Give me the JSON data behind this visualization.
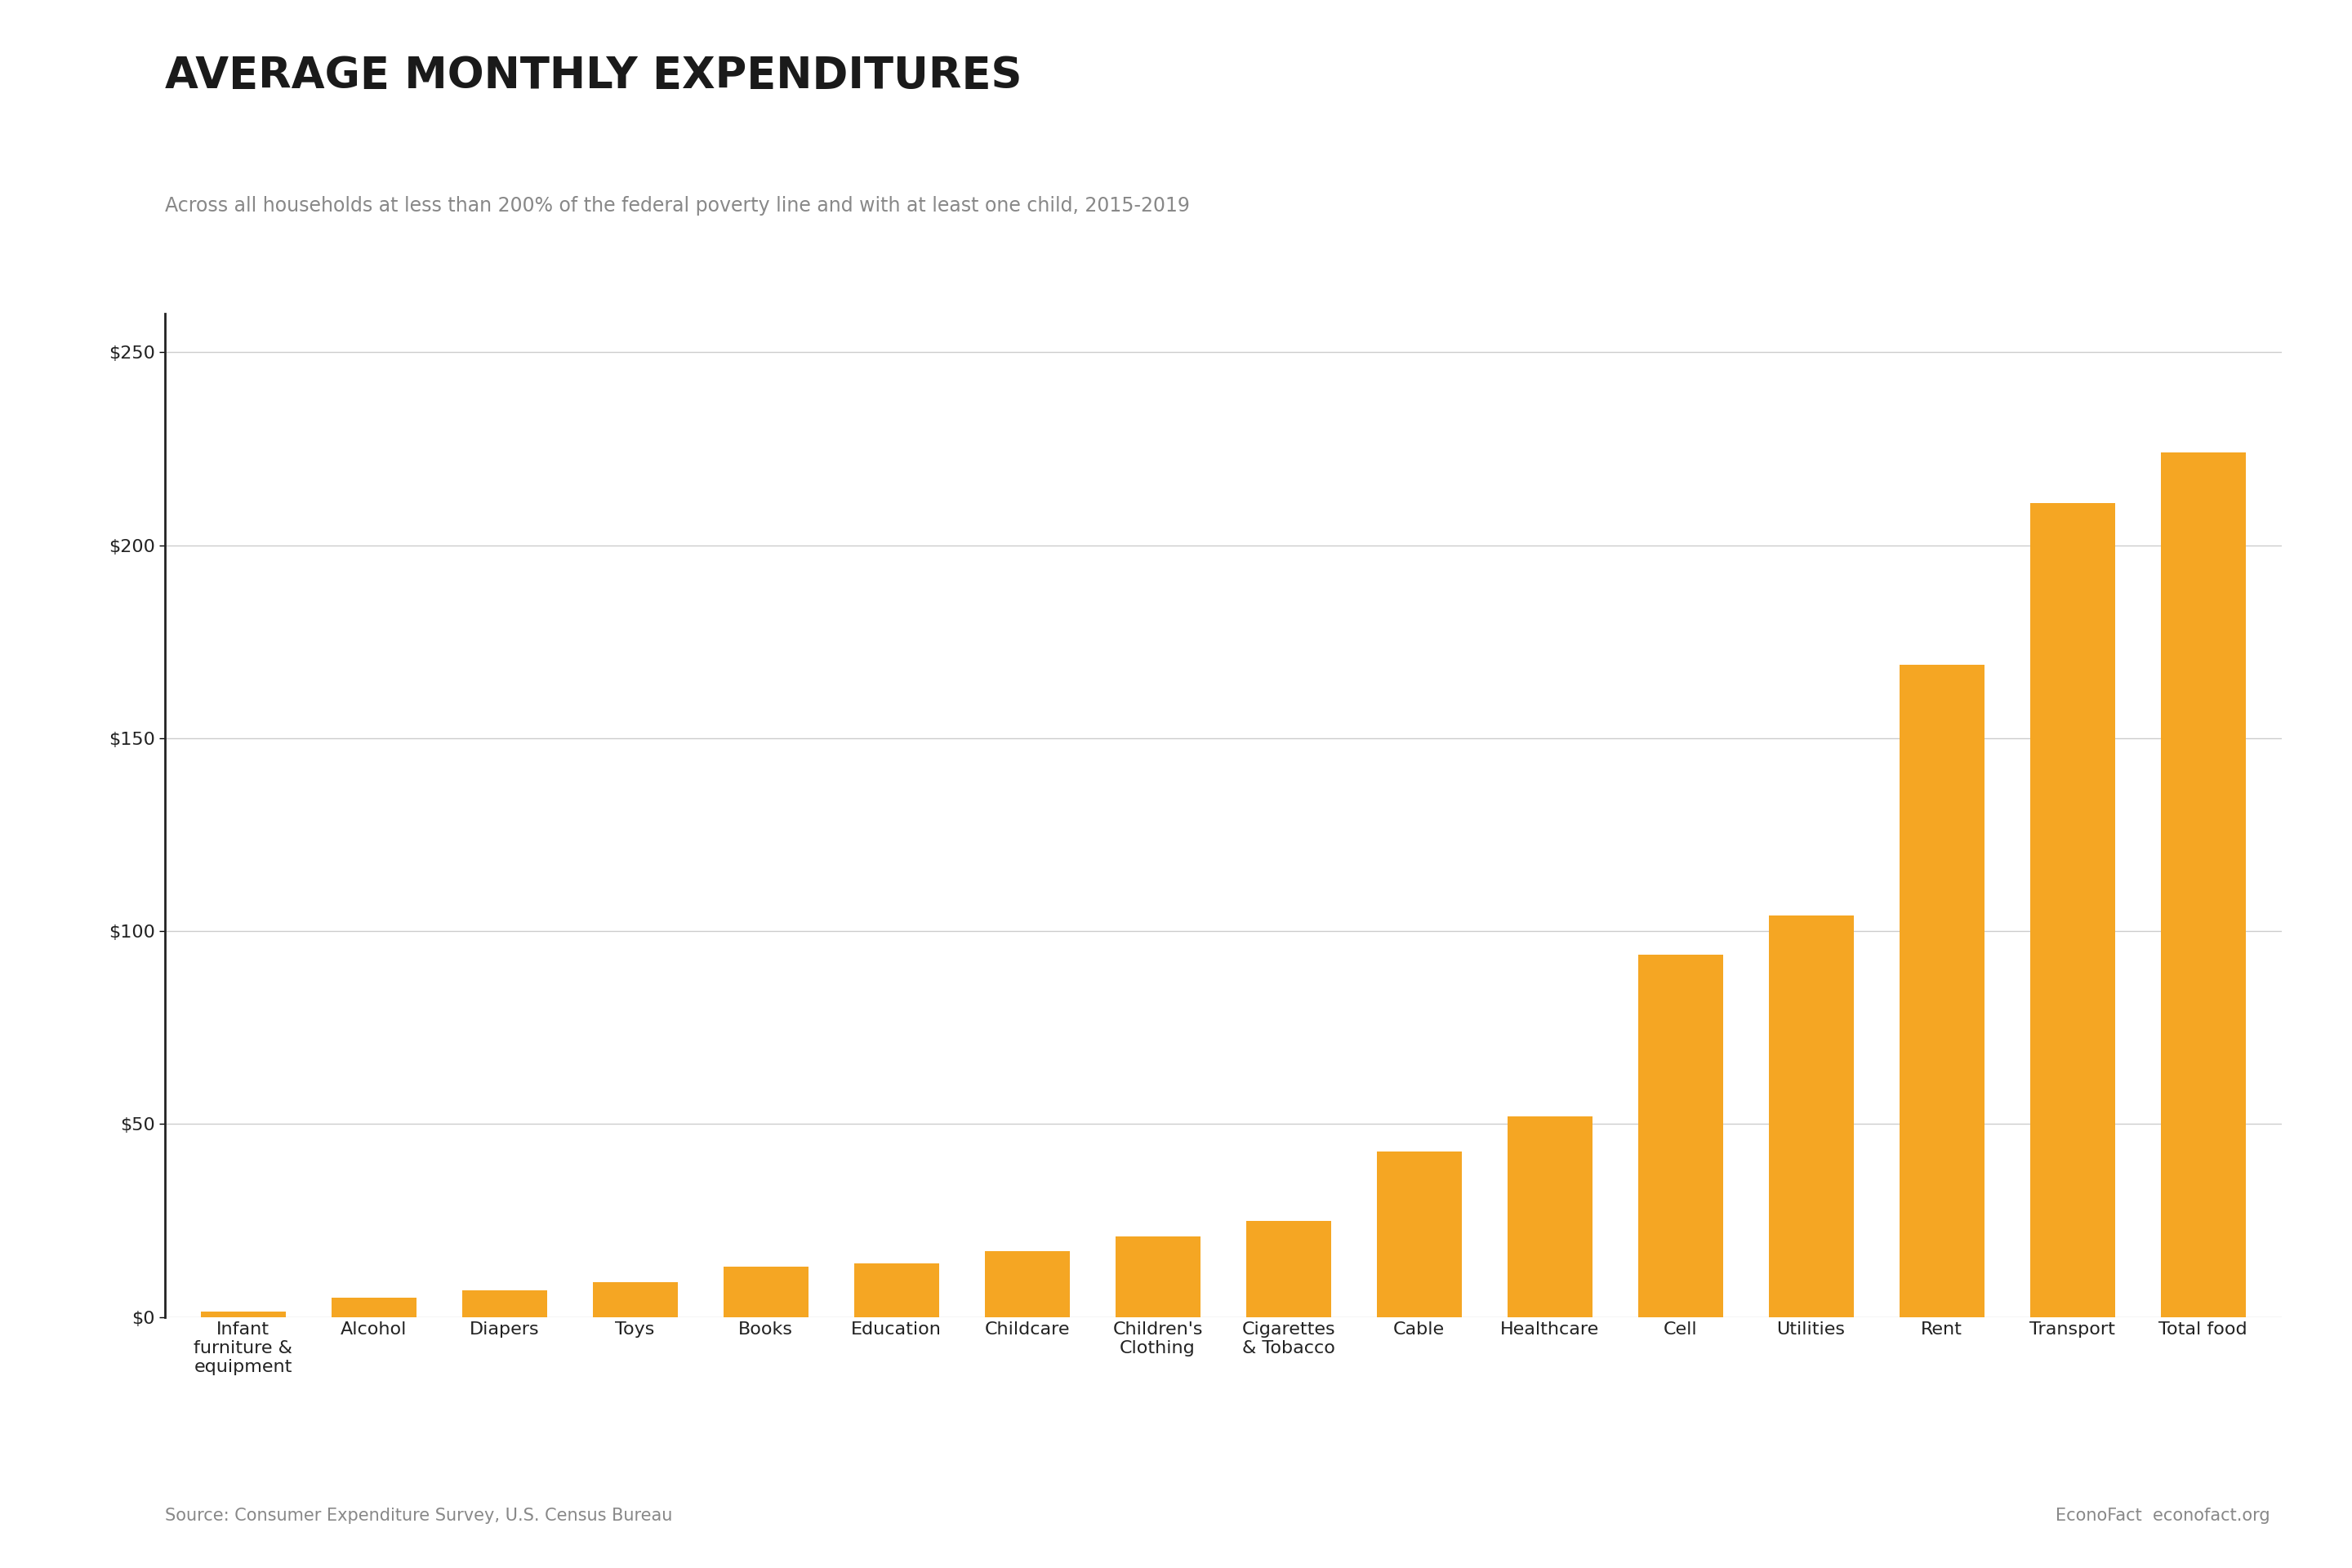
{
  "title": "AVERAGE MONTHLY EXPENDITURES",
  "subtitle": "Across all households at less than 200% of the federal poverty line and with at least one child, 2015-2019",
  "categories": [
    "Infant\nfurniture &\nequipment",
    "Alcohol",
    "Diapers",
    "Toys",
    "Books",
    "Education",
    "Childcare",
    "Children's\nClothing",
    "Cigarettes\n& Tobacco",
    "Cable",
    "Healthcare",
    "Cell",
    "Utilities",
    "Rent",
    "Transport",
    "Total food"
  ],
  "values": [
    1.5,
    5,
    7,
    9,
    13,
    14,
    17,
    21,
    25,
    43,
    52,
    94,
    104,
    169,
    211,
    224
  ],
  "bar_color": "#F5A623",
  "background_color": "#FFFFFF",
  "ylim": [
    0,
    260
  ],
  "yticks": [
    0,
    50,
    100,
    150,
    200,
    250
  ],
  "ytick_labels": [
    "$0",
    "$50",
    "$100",
    "$150",
    "$200",
    "$250"
  ],
  "source_left": "Source: Consumer Expenditure Survey, U.S. Census Bureau",
  "source_right": "EconoFact  econofact.org",
  "title_fontsize": 38,
  "subtitle_fontsize": 17,
  "tick_fontsize": 16,
  "source_fontsize": 15,
  "title_color": "#1a1a1a",
  "subtitle_color": "#888888",
  "axis_color": "#222222",
  "source_color": "#888888",
  "grid_color": "#CCCCCC"
}
